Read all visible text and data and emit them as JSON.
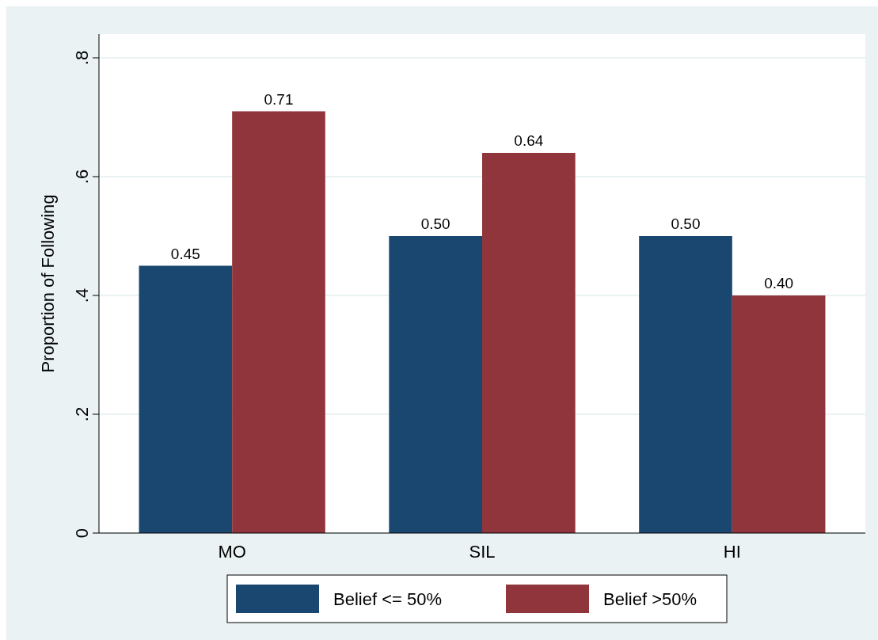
{
  "chart_data": {
    "type": "bar",
    "ylabel": "Proportion of Following",
    "categories": [
      "MO",
      "SIL",
      "HI"
    ],
    "series": [
      {
        "name": "Belief <= 50%",
        "color": "#1a476f",
        "values": [
          0.45,
          0.5,
          0.5
        ],
        "value_labels": [
          "0.45",
          "0.50",
          "0.50"
        ]
      },
      {
        "name": "Belief >50%",
        "color": "#90353b",
        "values": [
          0.71,
          0.64,
          0.4
        ],
        "value_labels": [
          "0.71",
          "0.64",
          "0.40"
        ]
      }
    ],
    "ylim": [
      0,
      0.84
    ],
    "yticks": [
      0,
      {
        "value": 0.2,
        "label": ".2"
      },
      {
        "value": 0.4,
        "label": ".4"
      },
      {
        "value": 0.6,
        "label": ".6"
      },
      {
        "value": 0.8,
        "label": ".8"
      }
    ],
    "grid": "y",
    "legend": "bottom"
  }
}
